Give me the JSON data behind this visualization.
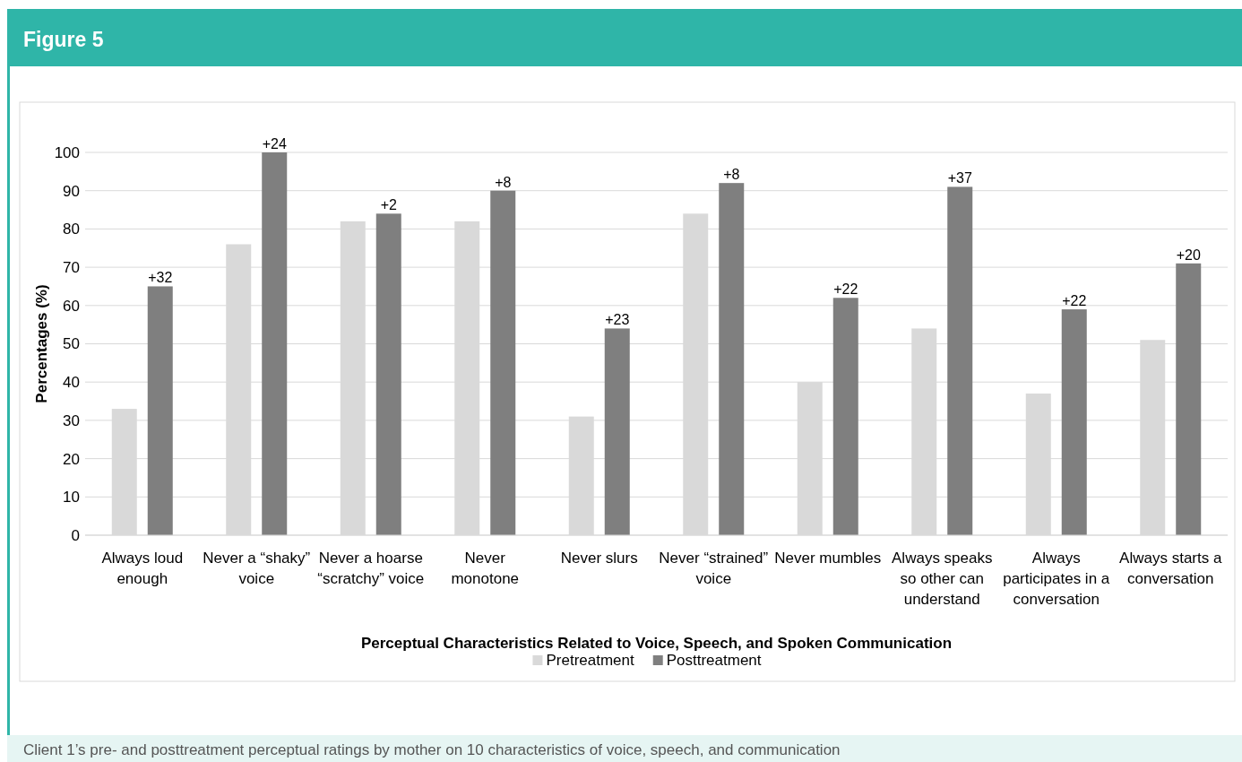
{
  "chart_data": {
    "type": "bar",
    "title": "Figure 5",
    "xlabel": "Perceptual Characteristics Related to Voice, Speech, and Spoken Communication",
    "ylabel": "Percentages (%)",
    "categories": [
      "Always loud enough",
      "Never a “shaky” voice",
      "Never a hoarse “scratchy” voice",
      "Never monotone",
      "Never slurs",
      "Never “strained” voice",
      "Never mumbles",
      "Always speaks so other can understand",
      "Always participates in a conversation",
      "Always starts a conversation"
    ],
    "series": [
      {
        "name": "Pretreatment",
        "color": "#d9d9d9",
        "values": [
          33,
          76,
          82,
          82,
          31,
          84,
          40,
          54,
          37,
          51
        ]
      },
      {
        "name": "Posttreatment",
        "color": "#7f7f7f",
        "values": [
          65,
          100,
          84,
          90,
          54,
          92,
          62,
          91,
          59,
          71
        ]
      }
    ],
    "annotations": [
      "+32",
      "+24",
      "+2",
      "+8",
      "+23",
      "+8",
      "+22",
      "+37",
      "+22",
      "+20",
      "Client 1’s pre- and posttreatment perceptual ratings by mother on 10 characteristics of voice, speech, and communication"
    ],
    "ylim": [
      0,
      100
    ],
    "yticks": [
      0,
      10,
      20,
      30,
      40,
      50,
      60,
      70,
      80,
      90,
      100
    ],
    "grid": "y",
    "legend": "bottom"
  }
}
